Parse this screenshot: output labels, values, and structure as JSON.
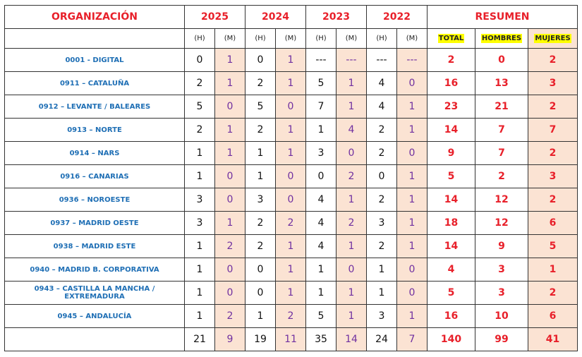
{
  "header": {
    "organization": "ORGANIZACIÓN",
    "years": [
      "2025",
      "2024",
      "2023",
      "2022"
    ],
    "summary": "RESUMEN",
    "sub_h": "(H)",
    "sub_m": "(M)",
    "total": "TOTAL",
    "men": "HOMBRES",
    "women": "MUJERES"
  },
  "rows": [
    [
      "0001 - DIGITAL",
      "0",
      "1",
      "0",
      "1",
      "---",
      "---",
      "---",
      "---",
      "2",
      "0",
      "2"
    ],
    [
      "0911 – CATALUÑA",
      "2",
      "1",
      "2",
      "1",
      "5",
      "1",
      "4",
      "0",
      "16",
      "13",
      "3"
    ],
    [
      "0912 – LEVANTE / BALEARES",
      "5",
      "0",
      "5",
      "0",
      "7",
      "1",
      "4",
      "1",
      "23",
      "21",
      "2"
    ],
    [
      "0913 – NORTE",
      "2",
      "1",
      "2",
      "1",
      "1",
      "4",
      "2",
      "1",
      "14",
      "7",
      "7"
    ],
    [
      "0914 – NARS",
      "1",
      "1",
      "1",
      "1",
      "3",
      "0",
      "2",
      "0",
      "9",
      "7",
      "2"
    ],
    [
      "0916 – CANARIAS",
      "1",
      "0",
      "1",
      "0",
      "0",
      "2",
      "0",
      "1",
      "5",
      "2",
      "3"
    ],
    [
      "0936 – NOROESTE",
      "3",
      "0",
      "3",
      "0",
      "4",
      "1",
      "2",
      "1",
      "14",
      "12",
      "2"
    ],
    [
      "0937 – MADRID OESTE",
      "3",
      "1",
      "2",
      "2",
      "4",
      "2",
      "3",
      "1",
      "18",
      "12",
      "6"
    ],
    [
      "0938 – MADRID ESTE",
      "1",
      "2",
      "2",
      "1",
      "4",
      "1",
      "2",
      "1",
      "14",
      "9",
      "5"
    ],
    [
      "0940 – MADRID B. CORPORATIVA",
      "1",
      "0",
      "0",
      "1",
      "1",
      "0",
      "1",
      "0",
      "4",
      "3",
      "1"
    ],
    [
      "0943 – CASTILLA LA MANCHA / EXTREMADURA",
      "1",
      "0",
      "0",
      "1",
      "1",
      "1",
      "1",
      "0",
      "5",
      "3",
      "2"
    ],
    [
      "0945 – ANDALUCÍA",
      "1",
      "2",
      "1",
      "2",
      "5",
      "1",
      "3",
      "1",
      "16",
      "10",
      "6"
    ]
  ],
  "totals": [
    "21",
    "9",
    "19",
    "11",
    "35",
    "14",
    "24",
    "7",
    "140",
    "99",
    "41"
  ]
}
